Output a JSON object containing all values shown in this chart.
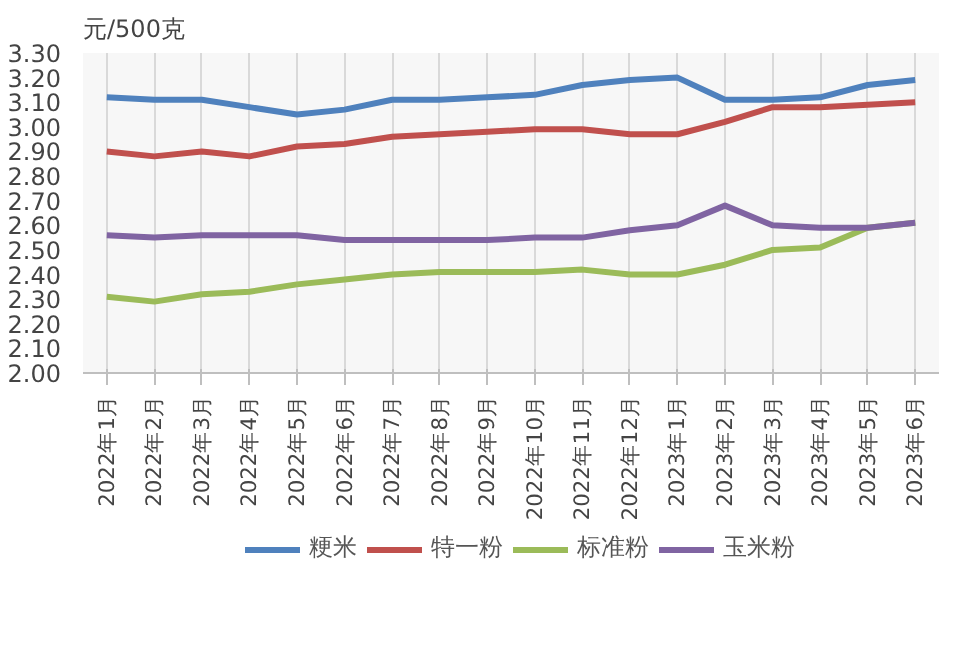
{
  "chart_data": {
    "type": "line",
    "ylabel": "元/500克",
    "categories": [
      "2022年1月",
      "2022年2月",
      "2022年3月",
      "2022年4月",
      "2022年5月",
      "2022年6月",
      "2022年7月",
      "2022年8月",
      "2022年9月",
      "2022年10月",
      "2022年11月",
      "2022年12月",
      "2023年1月",
      "2023年2月",
      "2023年3月",
      "2023年4月",
      "2023年5月",
      "2023年6月"
    ],
    "series": [
      {
        "name": "粳米",
        "color": "#4f81bd",
        "values": [
          3.12,
          3.11,
          3.11,
          3.08,
          3.05,
          3.07,
          3.11,
          3.11,
          3.12,
          3.13,
          3.17,
          3.19,
          3.2,
          3.11,
          3.11,
          3.12,
          3.17,
          3.19
        ]
      },
      {
        "name": "特一粉",
        "color": "#c0504d",
        "values": [
          2.9,
          2.88,
          2.9,
          2.88,
          2.92,
          2.93,
          2.96,
          2.97,
          2.98,
          2.99,
          2.99,
          2.97,
          2.97,
          3.02,
          3.08,
          3.08,
          3.09,
          3.1
        ]
      },
      {
        "name": "标准粉",
        "color": "#9bbb59",
        "values": [
          2.31,
          2.29,
          2.32,
          2.33,
          2.36,
          2.38,
          2.4,
          2.41,
          2.41,
          2.41,
          2.42,
          2.4,
          2.4,
          2.44,
          2.5,
          2.51,
          2.59,
          2.61
        ]
      },
      {
        "name": "玉米粉",
        "color": "#8064a2",
        "values": [
          2.56,
          2.55,
          2.56,
          2.56,
          2.56,
          2.54,
          2.54,
          2.54,
          2.54,
          2.55,
          2.55,
          2.58,
          2.6,
          2.68,
          2.6,
          2.59,
          2.59,
          2.61
        ]
      }
    ],
    "ylim": [
      2.0,
      3.3
    ],
    "yticks": [
      {
        "value": 2.0,
        "label": "2.00"
      },
      {
        "value": 2.1,
        "label": "2.10"
      },
      {
        "value": 2.2,
        "label": "2.20"
      },
      {
        "value": 2.3,
        "label": "2.30"
      },
      {
        "value": 2.4,
        "label": "2.40"
      },
      {
        "value": 2.5,
        "label": "2.50"
      },
      {
        "value": 2.6,
        "label": "2.60"
      },
      {
        "value": 2.7,
        "label": "2.70"
      },
      {
        "value": 2.8,
        "label": "2.80"
      },
      {
        "value": 2.9,
        "label": "2.90"
      },
      {
        "value": 3.0,
        "label": "3.00"
      },
      {
        "value": 3.1,
        "label": "3.10"
      },
      {
        "value": 3.2,
        "label": "3.20"
      },
      {
        "value": 3.3,
        "label": "3.30"
      }
    ],
    "grid": "x",
    "legend": "bottom",
    "line_style": "solid"
  }
}
